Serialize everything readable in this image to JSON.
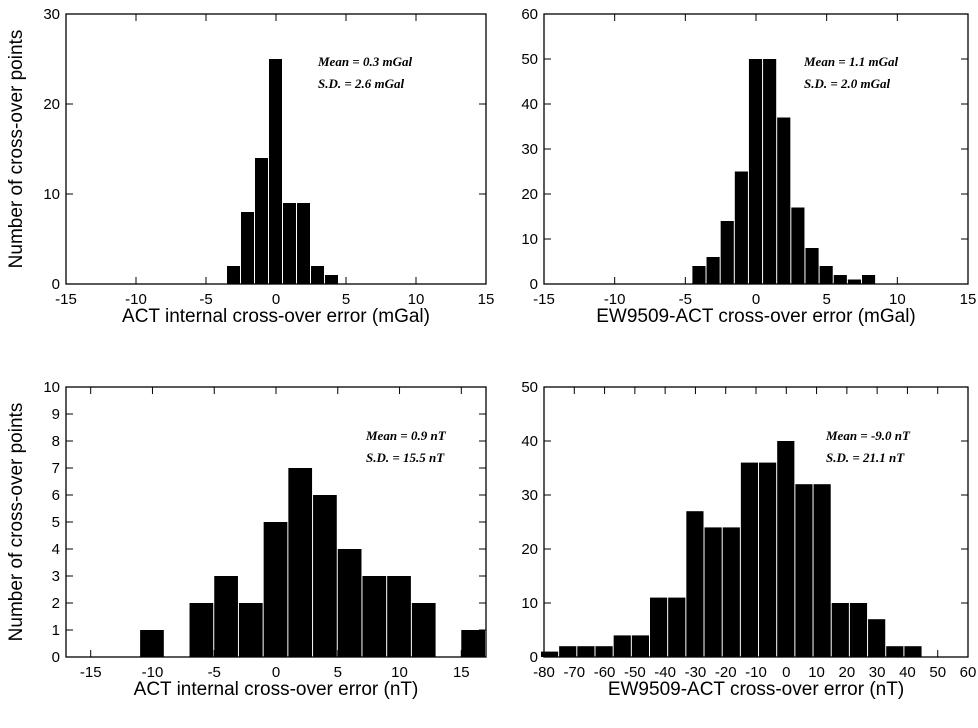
{
  "chart_data": [
    {
      "type": "bar",
      "ylabel": "Number of cross-over points",
      "xlabel": "ACT internal cross-over error (mGal)",
      "xlim": [
        -15,
        15
      ],
      "ylim": [
        0,
        30
      ],
      "xticks": [
        -15,
        -10,
        -5,
        0,
        5,
        10,
        15
      ],
      "yticks": [
        0,
        10,
        20,
        30
      ],
      "bin_width": 1,
      "bins": [
        {
          "x": -3,
          "y": 2
        },
        {
          "x": -2,
          "y": 8
        },
        {
          "x": -1,
          "y": 14
        },
        {
          "x": 0,
          "y": 25
        },
        {
          "x": 1,
          "y": 9
        },
        {
          "x": 2,
          "y": 9
        },
        {
          "x": 3,
          "y": 2
        },
        {
          "x": 4,
          "y": 1
        }
      ],
      "annotations": [
        "Mean = 0.3 mGal",
        "S.D. = 2.6 mGal"
      ]
    },
    {
      "type": "bar",
      "ylabel": "",
      "xlabel": "EW9509-ACT cross-over error (mGal)",
      "xlim": [
        -15,
        15
      ],
      "ylim": [
        0,
        60
      ],
      "xticks": [
        -15,
        -10,
        -5,
        0,
        5,
        10,
        15
      ],
      "yticks": [
        0,
        10,
        20,
        30,
        40,
        50,
        60
      ],
      "bin_width": 1,
      "bins": [
        {
          "x": -4,
          "y": 4
        },
        {
          "x": -3,
          "y": 6
        },
        {
          "x": -2,
          "y": 14
        },
        {
          "x": -1,
          "y": 25
        },
        {
          "x": 0,
          "y": 50
        },
        {
          "x": 1,
          "y": 50
        },
        {
          "x": 2,
          "y": 37
        },
        {
          "x": 3,
          "y": 17
        },
        {
          "x": 4,
          "y": 8
        },
        {
          "x": 5,
          "y": 4
        },
        {
          "x": 6,
          "y": 2
        },
        {
          "x": 7,
          "y": 1
        },
        {
          "x": 8,
          "y": 2
        }
      ],
      "annotations": [
        "Mean = 1.1 mGal",
        "S.D. = 2.0 mGal"
      ]
    },
    {
      "type": "bar",
      "ylabel": "Number of cross-over points",
      "xlabel": "ACT internal cross-over error (nT)",
      "xlim": [
        -17,
        17
      ],
      "ylim": [
        0,
        10
      ],
      "xticks": [
        -15,
        -10,
        -5,
        0,
        5,
        10,
        15
      ],
      "yticks": [
        0,
        1,
        2,
        3,
        4,
        5,
        6,
        7,
        8,
        9,
        10
      ],
      "bin_width": 2,
      "bins": [
        {
          "x": -10,
          "y": 1
        },
        {
          "x": -6,
          "y": 2
        },
        {
          "x": -4,
          "y": 3
        },
        {
          "x": -2,
          "y": 2
        },
        {
          "x": 0,
          "y": 5
        },
        {
          "x": 2,
          "y": 7
        },
        {
          "x": 4,
          "y": 6
        },
        {
          "x": 6,
          "y": 4
        },
        {
          "x": 8,
          "y": 3
        },
        {
          "x": 10,
          "y": 3
        },
        {
          "x": 12,
          "y": 2
        },
        {
          "x": 16,
          "y": 1
        }
      ],
      "annotations": [
        "Mean = 0.9 nT",
        "S.D. = 15.5 nT"
      ]
    },
    {
      "type": "bar",
      "ylabel": "",
      "xlabel": "EW9509-ACT cross-over error (nT)",
      "xlim": [
        -80,
        60
      ],
      "ylim": [
        0,
        50
      ],
      "xticks": [
        -80,
        -70,
        -60,
        -50,
        -40,
        -30,
        -20,
        -10,
        0,
        10,
        20,
        30,
        40,
        50,
        60
      ],
      "yticks": [
        0,
        10,
        20,
        30,
        40,
        50
      ],
      "bin_width": 6,
      "bins": [
        {
          "x": -78,
          "y": 1
        },
        {
          "x": -72,
          "y": 2
        },
        {
          "x": -66,
          "y": 2
        },
        {
          "x": -60,
          "y": 2
        },
        {
          "x": -54,
          "y": 4
        },
        {
          "x": -48,
          "y": 4
        },
        {
          "x": -42,
          "y": 11
        },
        {
          "x": -36,
          "y": 11
        },
        {
          "x": -30,
          "y": 27
        },
        {
          "x": -24,
          "y": 24
        },
        {
          "x": -18,
          "y": 24
        },
        {
          "x": -12,
          "y": 36
        },
        {
          "x": -6,
          "y": 36
        },
        {
          "x": 0,
          "y": 40
        },
        {
          "x": 6,
          "y": 32
        },
        {
          "x": 12,
          "y": 32
        },
        {
          "x": 18,
          "y": 10
        },
        {
          "x": 24,
          "y": 10
        },
        {
          "x": 30,
          "y": 7
        },
        {
          "x": 36,
          "y": 2
        },
        {
          "x": 42,
          "y": 2
        }
      ],
      "annotations": [
        "Mean = -9.0 nT",
        "S.D. = 21.1 nT"
      ]
    }
  ]
}
